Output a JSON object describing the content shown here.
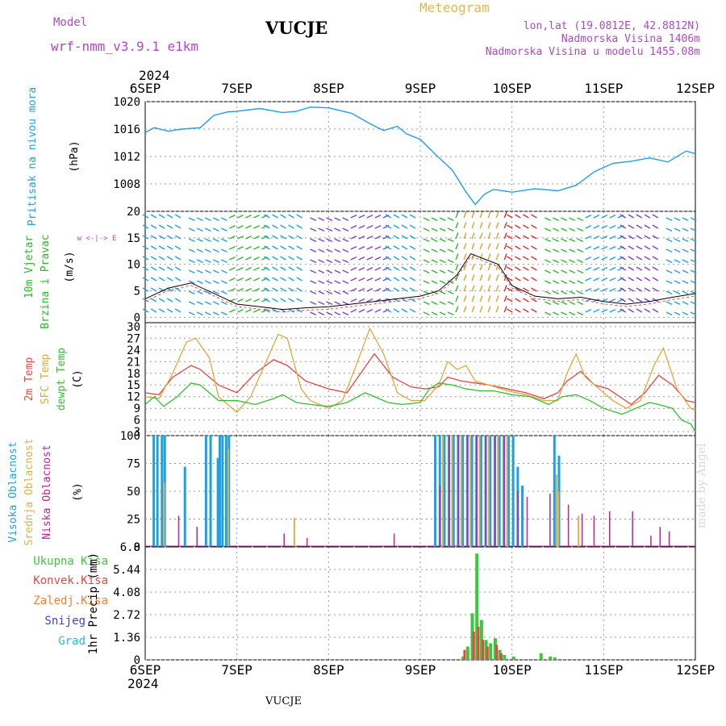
{
  "header": {
    "model_label": "Model",
    "model_name": "wrf-nmm_v3.9.1  e1km",
    "station": "VUCJE",
    "product": "Meteogram",
    "lonlat": "lon,lat (19.0812E, 42.8812N)",
    "elevation": "Nadmorska Visina 1406m",
    "model_elevation": "Nadmorska Visina u modelu 1455.08m",
    "footer_station": "VUCJE",
    "credit": "made by Angel"
  },
  "colors": {
    "pressure": "#1ea0e6",
    "wind_label": "#2db82d",
    "temp_2m": "#e84545",
    "temp_sfc": "#e0a83c",
    "dewpoint": "#2fc22f",
    "cloud_high": "#1ea0e6",
    "cloud_mid": "#d9b050",
    "cloud_low": "#c0209c",
    "precip_total": "#3cc83c",
    "precip_conv": "#e84545",
    "precip_frozen": "#f08030",
    "snow": "#4040d8",
    "hail": "#20c0c0",
    "grid": "#999999"
  },
  "time_axis": {
    "top_year": "2024",
    "bottom_year": "2024",
    "ticks": [
      "6SEP",
      "7SEP",
      "8SEP",
      "9SEP",
      "10SEP",
      "11SEP",
      "12SEP"
    ]
  },
  "chart_data": [
    {
      "type": "line",
      "panel": "pressure",
      "ylabel": "Pritisak na nivou mora",
      "unit": "(hPa)",
      "ylim": [
        1004,
        1020
      ],
      "yticks": [
        "1020",
        "1016",
        "1012",
        "1008"
      ],
      "series": [
        {
          "x": [
            0,
            0.1,
            0.25,
            0.4,
            0.6,
            0.75,
            0.9,
            1.0,
            1.25,
            1.5,
            1.65,
            1.8,
            2.0,
            2.25,
            2.45,
            2.6,
            2.75,
            2.85,
            3.0,
            3.15,
            3.35,
            3.5,
            3.6,
            3.7,
            3.8,
            4.0,
            4.25,
            4.5,
            4.7,
            4.9,
            5.1,
            5.3,
            5.5,
            5.7,
            5.9,
            6.0
          ],
          "y": [
            1015.5,
            1016.2,
            1015.7,
            1016.0,
            1016.2,
            1018.0,
            1018.5,
            1018.6,
            1019.0,
            1018.4,
            1018.6,
            1019.2,
            1019.1,
            1018.3,
            1016.8,
            1015.8,
            1016.4,
            1015.3,
            1014.5,
            1012.5,
            1010.0,
            1006.8,
            1005.0,
            1006.5,
            1007.2,
            1006.8,
            1007.3,
            1007.0,
            1007.8,
            1009.8,
            1011.0,
            1011.3,
            1011.8,
            1011.2,
            1012.8,
            1012.4
          ]
        }
      ]
    },
    {
      "type": "line",
      "panel": "wind",
      "ylabel": "10m Vjetar Brzina i Pravac",
      "unit": "(m/s)",
      "compass": "w <-|-> E",
      "ylim": [
        -1,
        20
      ],
      "yticks": [
        "20",
        "15",
        "10",
        "5",
        "0"
      ],
      "series": [
        {
          "name": "speed",
          "x": [
            0,
            0.25,
            0.5,
            0.75,
            1.0,
            1.25,
            1.5,
            1.75,
            2.0,
            2.25,
            2.5,
            2.75,
            3.0,
            3.2,
            3.4,
            3.55,
            3.7,
            3.85,
            4.0,
            4.25,
            4.5,
            4.75,
            5.0,
            5.25,
            5.5,
            5.75,
            6.0
          ],
          "y": [
            3.5,
            5.5,
            6.5,
            4.5,
            2.5,
            2.0,
            1.5,
            1.8,
            2.0,
            2.5,
            3.0,
            3.5,
            4.0,
            5.0,
            8.0,
            12.0,
            11.0,
            10.0,
            6.0,
            4.0,
            3.5,
            3.8,
            3.0,
            2.5,
            3.0,
            3.8,
            4.5
          ]
        }
      ]
    },
    {
      "type": "line",
      "panel": "temperature",
      "ylabel_lines": [
        "2m Temp",
        "SFC Temp",
        "dewpt Temp"
      ],
      "unit": "(C)",
      "ylim": [
        2,
        31
      ],
      "yticks": [
        "30",
        "27",
        "24",
        "21",
        "18",
        "15",
        "12",
        "9",
        "6",
        "3"
      ],
      "series": [
        {
          "name": "2m Temp",
          "x": [
            0,
            0.15,
            0.3,
            0.5,
            0.6,
            0.8,
            1.0,
            1.2,
            1.4,
            1.55,
            1.75,
            2.0,
            2.2,
            2.35,
            2.5,
            2.7,
            2.9,
            3.05,
            3.2,
            3.3,
            3.45,
            3.6,
            3.75,
            3.95,
            4.15,
            4.35,
            4.5,
            4.6,
            4.75,
            4.9,
            5.05,
            5.3,
            5.45,
            5.6,
            5.75,
            5.9,
            6.0
          ],
          "y": [
            13,
            12.5,
            17,
            20,
            19,
            15,
            13,
            18,
            21.5,
            20,
            16,
            14,
            13,
            18,
            23,
            17,
            14.5,
            14,
            14.5,
            17,
            16,
            15.5,
            15,
            14,
            13,
            11.5,
            13,
            16,
            18.5,
            15,
            14,
            10,
            13,
            17.5,
            15,
            11,
            10.5
          ]
        },
        {
          "name": "SFC Temp",
          "x": [
            0,
            0.15,
            0.3,
            0.45,
            0.55,
            0.7,
            0.8,
            1.0,
            1.15,
            1.3,
            1.45,
            1.55,
            1.7,
            1.8,
            2.0,
            2.15,
            2.3,
            2.45,
            2.6,
            2.75,
            2.9,
            3.05,
            3.2,
            3.3,
            3.4,
            3.5,
            3.6,
            3.75,
            3.95,
            4.15,
            4.35,
            4.5,
            4.6,
            4.7,
            4.8,
            4.95,
            5.1,
            5.25,
            5.4,
            5.55,
            5.65,
            5.8,
            5.95,
            6.0
          ],
          "y": [
            12,
            11.5,
            18,
            26,
            27,
            22,
            12,
            8,
            12,
            20,
            28,
            27,
            14,
            11,
            9,
            11,
            20,
            29.5,
            23,
            13,
            11,
            11,
            15,
            21,
            19,
            20,
            16,
            15,
            13.5,
            12.5,
            11,
            11,
            18,
            23,
            17,
            14,
            11,
            9,
            11,
            20,
            24.5,
            14,
            9,
            8.5
          ]
        },
        {
          "name": "dewpt Temp",
          "x": [
            0,
            0.1,
            0.2,
            0.35,
            0.5,
            0.6,
            0.8,
            1.0,
            1.2,
            1.4,
            1.5,
            1.65,
            1.8,
            2.0,
            2.2,
            2.4,
            2.5,
            2.65,
            2.8,
            3.0,
            3.1,
            3.2,
            3.35,
            3.5,
            3.65,
            3.8,
            4.0,
            4.2,
            4.4,
            4.55,
            4.7,
            4.85,
            5.0,
            5.2,
            5.35,
            5.5,
            5.6,
            5.75,
            5.85,
            5.95,
            6.0
          ],
          "y": [
            10,
            12,
            9.5,
            12,
            15.5,
            15,
            11,
            11,
            10,
            11.5,
            12.5,
            10.5,
            10,
            9.5,
            10.5,
            13,
            12,
            10.5,
            10,
            10.5,
            14,
            15.5,
            15,
            14,
            13.5,
            13.5,
            12.5,
            12,
            10,
            12,
            12.5,
            11,
            9,
            7.5,
            9,
            10.5,
            10,
            9,
            6,
            5,
            3
          ]
        }
      ]
    },
    {
      "type": "bar",
      "panel": "cloud",
      "ylabel_lines": [
        "Visoka Oblacnost",
        "Srednja Oblacnost",
        "Niska Oblacnost"
      ],
      "unit": "(%)",
      "ylim": [
        0,
        100
      ],
      "yticks": [
        "100",
        "75",
        "50",
        "25",
        "0"
      ],
      "high_bars": [
        [
          0.08,
          100
        ],
        [
          0.12,
          100
        ],
        [
          0.17,
          100
        ],
        [
          0.2,
          100
        ],
        [
          0.42,
          72
        ],
        [
          0.65,
          100
        ],
        [
          0.7,
          100
        ],
        [
          0.78,
          80
        ],
        [
          0.8,
          100
        ],
        [
          0.83,
          100
        ],
        [
          0.87,
          100
        ],
        [
          0.9,
          100
        ],
        [
          3.15,
          100
        ],
        [
          3.2,
          100
        ],
        [
          3.25,
          100
        ],
        [
          3.3,
          100
        ],
        [
          3.35,
          100
        ],
        [
          3.4,
          100
        ],
        [
          3.45,
          100
        ],
        [
          3.5,
          100
        ],
        [
          3.55,
          100
        ],
        [
          3.6,
          100
        ],
        [
          3.65,
          100
        ],
        [
          3.7,
          100
        ],
        [
          3.75,
          100
        ],
        [
          3.8,
          100
        ],
        [
          3.85,
          100
        ],
        [
          3.9,
          100
        ],
        [
          3.95,
          100
        ],
        [
          4.0,
          100
        ],
        [
          4.05,
          72
        ],
        [
          4.1,
          55
        ],
        [
          4.45,
          100
        ],
        [
          4.5,
          82
        ]
      ],
      "mid_bars": [
        [
          0.18,
          58
        ],
        [
          0.88,
          88
        ],
        [
          1.6,
          26
        ],
        [
          3.22,
          100
        ],
        [
          3.32,
          100
        ],
        [
          3.42,
          100
        ],
        [
          3.52,
          100
        ],
        [
          3.62,
          100
        ],
        [
          3.72,
          100
        ],
        [
          3.82,
          100
        ],
        [
          3.92,
          100
        ],
        [
          4.46,
          65
        ],
        [
          4.48,
          50
        ],
        [
          4.7,
          28
        ]
      ],
      "low_bars": [
        [
          0.35,
          28
        ],
        [
          0.55,
          18
        ],
        [
          1.5,
          12
        ],
        [
          1.75,
          8
        ],
        [
          2.7,
          12
        ],
        [
          3.2,
          55
        ],
        [
          3.3,
          100
        ],
        [
          3.4,
          100
        ],
        [
          3.5,
          100
        ],
        [
          3.6,
          100
        ],
        [
          3.7,
          100
        ],
        [
          3.8,
          100
        ],
        [
          3.9,
          100
        ],
        [
          4.05,
          50
        ],
        [
          4.15,
          45
        ],
        [
          4.4,
          48
        ],
        [
          4.6,
          38
        ],
        [
          4.75,
          30
        ],
        [
          4.88,
          28
        ],
        [
          5.05,
          32
        ],
        [
          5.3,
          32
        ],
        [
          5.5,
          10
        ],
        [
          5.6,
          18
        ],
        [
          5.7,
          14
        ]
      ]
    },
    {
      "type": "bar",
      "panel": "precipitation",
      "legend": [
        "Ukupna Kisa",
        "Konvek.Kisa",
        "Zaledj.Kisa",
        "Snijeg",
        "Grad"
      ],
      "ylabel": "1hr Precip",
      "unit": "(mm)",
      "ylim": [
        0,
        6.8
      ],
      "yticks": [
        "6.8",
        "5.44",
        "4.08",
        "2.72",
        "1.36",
        "0"
      ],
      "total_bars": [
        [
          3.45,
          0.2
        ],
        [
          3.5,
          0.8
        ],
        [
          3.55,
          2.8
        ],
        [
          3.6,
          6.4
        ],
        [
          3.65,
          2.4
        ],
        [
          3.7,
          1.2
        ],
        [
          3.75,
          1.0
        ],
        [
          3.8,
          1.3
        ],
        [
          3.85,
          0.6
        ],
        [
          3.9,
          0.3
        ],
        [
          4.0,
          0.2
        ],
        [
          4.3,
          0.4
        ],
        [
          4.4,
          0.2
        ],
        [
          4.45,
          0.15
        ]
      ],
      "conv_bars": [
        [
          3.47,
          0.6
        ],
        [
          3.57,
          1.7
        ],
        [
          3.62,
          2.0
        ],
        [
          3.67,
          1.2
        ],
        [
          3.72,
          0.8
        ],
        [
          3.82,
          0.9
        ],
        [
          3.87,
          0.4
        ]
      ]
    }
  ]
}
